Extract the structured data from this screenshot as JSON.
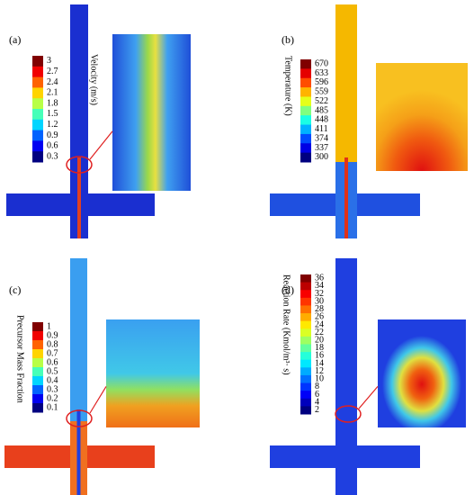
{
  "panels": [
    {
      "label": "(a)",
      "quantity": "Velocity (m/s)",
      "ticks": [
        "3",
        "2.7",
        "2.4",
        "2.1",
        "1.8",
        "1.5",
        "1.2",
        "0.9",
        "0.6",
        "0.3"
      ]
    },
    {
      "label": "(b)",
      "quantity": "Temperature (K)",
      "ticks": [
        "670",
        "633",
        "596",
        "559",
        "522",
        "485",
        "448",
        "411",
        "374",
        "337",
        "300"
      ]
    },
    {
      "label": "(c)",
      "quantity": "Precursor Mass Fraction",
      "ticks": [
        "1",
        "0.9",
        "0.8",
        "0.7",
        "0.6",
        "0.5",
        "0.4",
        "0.3",
        "0.2",
        "0.1"
      ]
    },
    {
      "label": "(d)",
      "quantity": "Reaction Rate (Kmol/m³· s)",
      "ticks": [
        "36",
        "34",
        "32",
        "30",
        "28",
        "26",
        "24",
        "22",
        "20",
        "18",
        "16",
        "14",
        "12",
        "10",
        "8",
        "6",
        "4",
        "2"
      ]
    }
  ]
}
